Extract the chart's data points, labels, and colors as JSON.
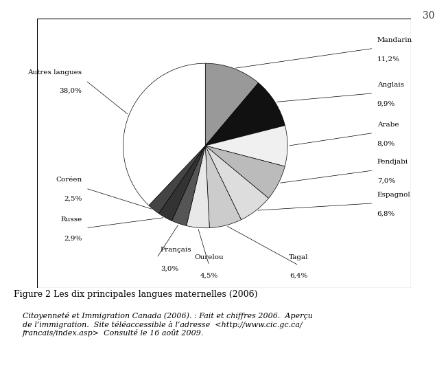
{
  "labels": [
    "Mandarin",
    "Anglais",
    "Arabe",
    "Pendjabi",
    "Espagnol",
    "Tagal",
    "Ourelou",
    "Français",
    "Russe",
    "Coréen",
    "Autres langues"
  ],
  "values": [
    11.2,
    9.9,
    8.0,
    7.0,
    6.8,
    6.4,
    4.5,
    3.0,
    2.9,
    2.5,
    38.0
  ],
  "label_values": [
    "11,2%",
    "9,9%",
    "8,0%",
    "7,0%",
    "6,8%",
    "6,4%",
    "4,5%",
    "3,0%",
    "2,9%",
    "2,5%",
    "38,0%"
  ],
  "colors": [
    "#999999",
    "#111111",
    "#f0f0f0",
    "#bbbbbb",
    "#dddddd",
    "#cccccc",
    "#e8e8e8",
    "#555555",
    "#333333",
    "#444444",
    "#ffffff"
  ],
  "figure_caption": "Figure 2 Les dix principales langues maternelles (2006)",
  "source_text": "Citoyenneté et Immigration Canada (2006). : Fait et chiffres 2006.  Aperçu\nde l’immigration.  Site téléaccessible à l’adresse  <http://www.cic.gc.ca/\nfrancais/index.asp>  Consulté le 16 août 2009.",
  "page_number": "30",
  "background_color": "#ffffff",
  "box_color": "#000000"
}
